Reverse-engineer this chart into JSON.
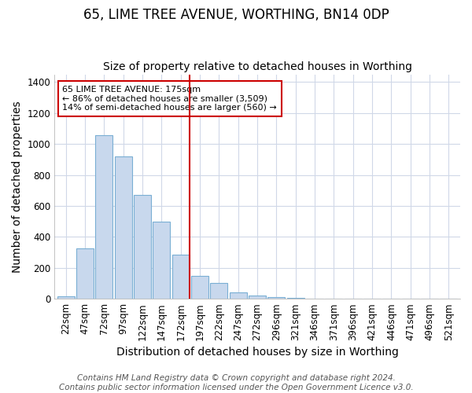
{
  "title": "65, LIME TREE AVENUE, WORTHING, BN14 0DP",
  "subtitle": "Size of property relative to detached houses in Worthing",
  "xlabel": "Distribution of detached houses by size in Worthing",
  "ylabel": "Number of detached properties",
  "categories": [
    "22sqm",
    "47sqm",
    "72sqm",
    "97sqm",
    "122sqm",
    "147sqm",
    "172sqm",
    "197sqm",
    "222sqm",
    "247sqm",
    "272sqm",
    "296sqm",
    "321sqm",
    "346sqm",
    "371sqm",
    "396sqm",
    "421sqm",
    "446sqm",
    "471sqm",
    "496sqm",
    "521sqm"
  ],
  "values": [
    15,
    325,
    1055,
    920,
    670,
    500,
    285,
    150,
    100,
    40,
    20,
    10,
    5,
    2,
    1,
    0,
    0,
    0,
    0,
    0,
    0
  ],
  "bar_color": "#c8d8ed",
  "bar_edge_color": "#7aafd4",
  "vline_color": "#cc0000",
  "annotation_text": "65 LIME TREE AVENUE: 175sqm\n← 86% of detached houses are smaller (3,509)\n14% of semi-detached houses are larger (560) →",
  "annotation_box_color": "#ffffff",
  "annotation_box_edge": "#cc0000",
  "ylim": [
    0,
    1450
  ],
  "yticks": [
    0,
    200,
    400,
    600,
    800,
    1000,
    1200,
    1400
  ],
  "footer_line1": "Contains HM Land Registry data © Crown copyright and database right 2024.",
  "footer_line2": "Contains public sector information licensed under the Open Government Licence v3.0.",
  "bg_color": "#ffffff",
  "plot_bg_color": "#ffffff",
  "grid_color": "#d0d8e8",
  "title_fontsize": 12,
  "subtitle_fontsize": 10,
  "axis_label_fontsize": 10,
  "tick_fontsize": 8.5,
  "footer_fontsize": 7.5,
  "vline_x_idx": 6
}
